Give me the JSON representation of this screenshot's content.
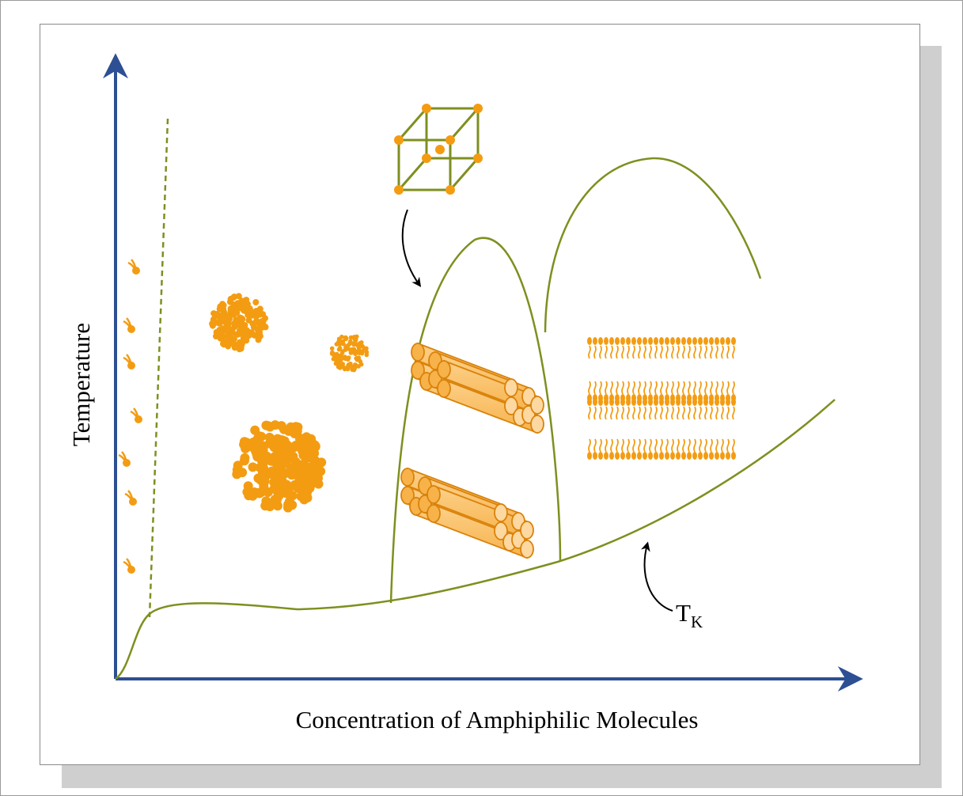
{
  "diagram": {
    "x_axis_label": "Concentration of Amphiphilic Molecules",
    "y_axis_label": "Temperature",
    "krafft_label_main": "T",
    "krafft_label_sub": "K",
    "colors": {
      "axis": "#2d4f93",
      "boundary": "#7f8f1f",
      "molecule": "#f39c12",
      "molecule_dark": "#d9820a",
      "rod_light": "#fdd8a0",
      "frame": "#8a8a8a",
      "shadow": "#cfcfcf"
    }
  }
}
